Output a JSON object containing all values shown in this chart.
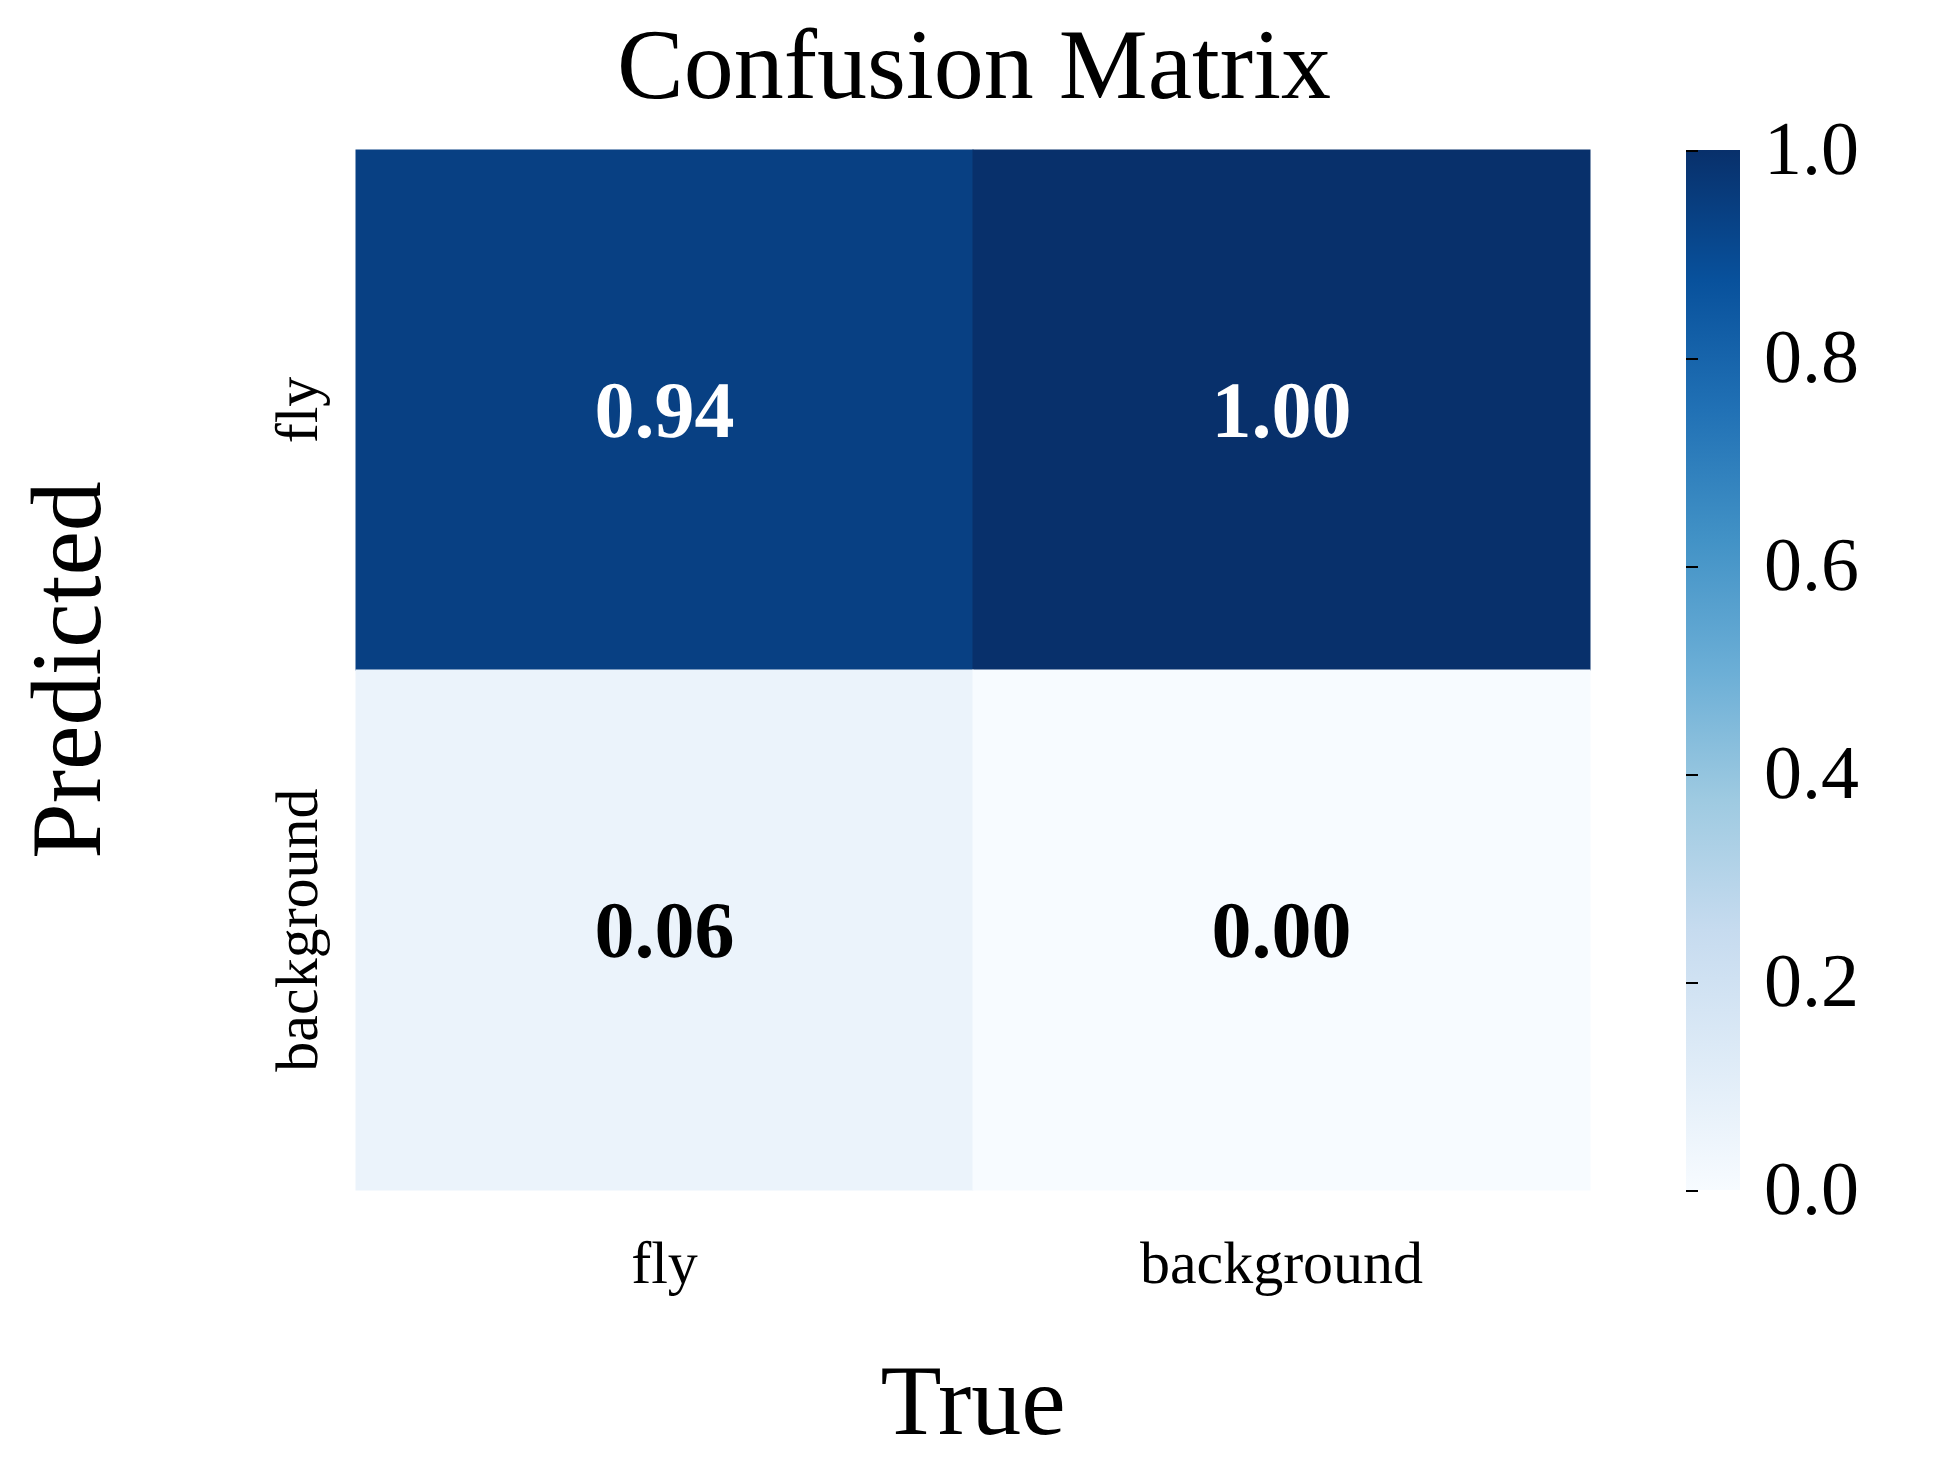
{
  "chart_data": {
    "type": "heatmap",
    "title": "Confusion Matrix",
    "xlabel": "True",
    "ylabel": "Predicted",
    "categories": [
      "fly",
      "background"
    ],
    "y_categories": [
      "fly",
      "background"
    ],
    "cells": [
      [
        0.94,
        1.0
      ],
      [
        0.06,
        0.0
      ]
    ],
    "cell_labels": [
      [
        "0.94",
        "1.00"
      ],
      [
        "0.06",
        "0.00"
      ]
    ],
    "clim": [
      0,
      1
    ],
    "cticks": [
      {
        "value": 0,
        "label": "0.0"
      },
      {
        "value": 0.2,
        "label": "0.2"
      },
      {
        "value": 0.4,
        "label": "0.4"
      },
      {
        "value": 0.6,
        "label": "0.6"
      },
      {
        "value": 0.8,
        "label": "0.8"
      },
      {
        "value": 1,
        "label": "1.0"
      }
    ]
  }
}
